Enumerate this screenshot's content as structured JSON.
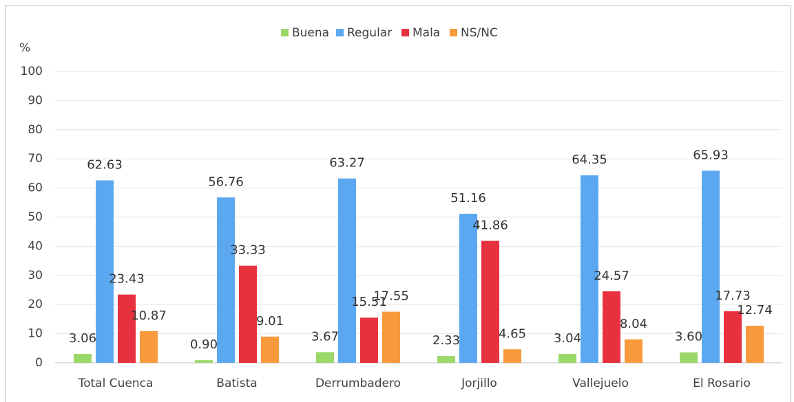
{
  "chart_data": {
    "type": "bar",
    "y_label": "%",
    "categories": [
      "Total Cuenca",
      "Batista",
      "Derrumbadero",
      "Jorjillo",
      "Vallejuelo",
      "El Rosario"
    ],
    "series": [
      {
        "name": "Buena",
        "color": "#9bd86a",
        "values": [
          3.06,
          0.9,
          3.67,
          2.33,
          3.04,
          3.6
        ],
        "value_labels": [
          "3.06",
          "0.90",
          "3.67",
          "2.33",
          "3.04",
          "3.60"
        ]
      },
      {
        "name": "Regular",
        "color": "#5ba8f0",
        "values": [
          62.63,
          56.76,
          63.27,
          51.16,
          64.35,
          65.93
        ],
        "value_labels": [
          "62.63",
          "56.76",
          "63.27",
          "51.16",
          "64.35",
          "65.93"
        ]
      },
      {
        "name": "Mala",
        "color": "#e8313f",
        "values": [
          23.43,
          33.33,
          15.51,
          41.86,
          24.57,
          17.73
        ],
        "value_labels": [
          "23.43",
          "33.33",
          "15.51",
          "41.86",
          "24.57",
          "17.73"
        ]
      },
      {
        "name": "NS/NC",
        "color": "#f89a3c",
        "values": [
          10.87,
          9.01,
          17.55,
          4.65,
          8.04,
          12.74
        ],
        "value_labels": [
          "10.87",
          "9.01",
          "17.55",
          "4.65",
          "8.04",
          "12.74"
        ]
      }
    ],
    "ylim": [
      0,
      100
    ],
    "yticks": [
      0,
      10,
      20,
      30,
      40,
      50,
      60,
      70,
      80,
      90,
      100
    ],
    "grid": true,
    "legend": "top"
  }
}
